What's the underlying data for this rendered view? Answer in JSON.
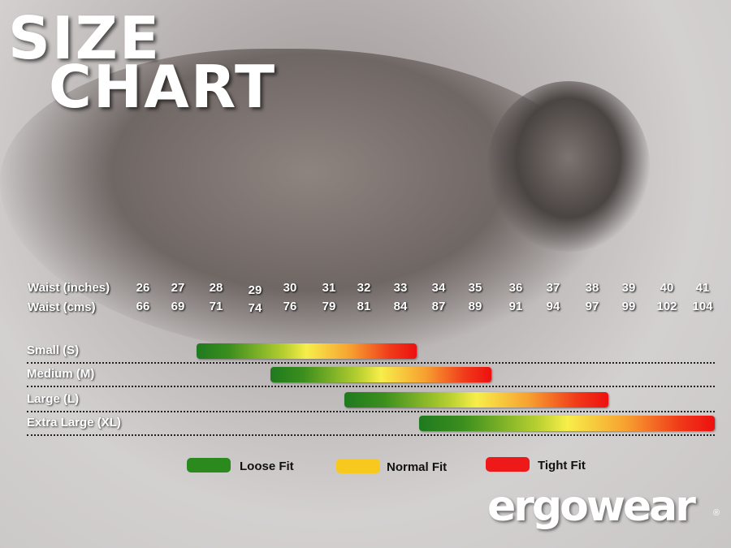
{
  "title": {
    "line1": "SIZE",
    "line2": "CHART"
  },
  "chart_data": {
    "type": "range-bar",
    "rows": {
      "inches_label": "Waist (inches)",
      "cms_label": "Waist (cms)",
      "inches": [
        "26",
        "27",
        "28",
        "29",
        "30",
        "31",
        "32",
        "33",
        "34",
        "35",
        "36",
        "37",
        "38",
        "39",
        "40",
        "41"
      ],
      "cms": [
        "66",
        "69",
        "71",
        "74",
        "76",
        "79",
        "81",
        "84",
        "87",
        "89",
        "91",
        "94",
        "97",
        "99",
        "102",
        "104"
      ]
    },
    "sizes": [
      {
        "label": "Small (S)",
        "from": 28,
        "to": 33
      },
      {
        "label": "Medium (M)",
        "from": 30,
        "to": 35
      },
      {
        "label": "Large (L)",
        "from": 32,
        "to": 38
      },
      {
        "label": "Extra Large (XL)",
        "from": 34,
        "to": 41
      }
    ],
    "gradient": "green (loose) to yellow (normal) to red (tight)"
  },
  "legend": [
    {
      "label": "Loose Fit",
      "color": "#2a8a1e"
    },
    {
      "label": "Normal Fit",
      "color": "#f7c81e"
    },
    {
      "label": "Tight Fit",
      "color": "#ee1a1a"
    }
  ],
  "logo": {
    "text": "ergowear",
    "mark": "®"
  }
}
